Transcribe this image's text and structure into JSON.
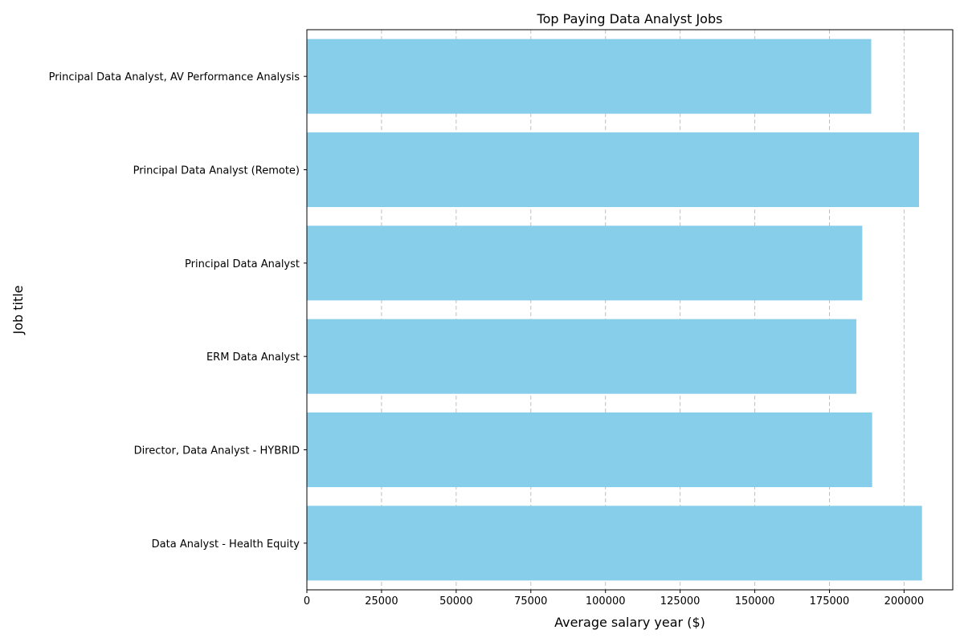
{
  "chart_data": {
    "type": "bar",
    "orientation": "horizontal",
    "title": "Top Paying Data Analyst Jobs",
    "xlabel": "Average salary year ($)",
    "ylabel": "Job title",
    "categories": [
      "Data Analyst - Health Equity",
      "Director, Data Analyst - HYBRID",
      "ERM Data Analyst",
      "Principal Data Analyst",
      "Principal Data Analyst (Remote)",
      "Principal Data Analyst, AV Performance Analysis"
    ],
    "values": [
      206000,
      189309,
      184000,
      186000,
      205000,
      189000
    ],
    "xlim": [
      0,
      216300
    ],
    "xticks": [
      0,
      25000,
      50000,
      75000,
      100000,
      125000,
      150000,
      175000,
      200000
    ],
    "xtick_labels": [
      "0",
      "25000",
      "50000",
      "75000",
      "100000",
      "125000",
      "150000",
      "175000",
      "200000"
    ],
    "bar_color": "#87ceeb",
    "grid": {
      "axis": "x",
      "style": "dashed",
      "color": "#c0c0c0"
    }
  }
}
